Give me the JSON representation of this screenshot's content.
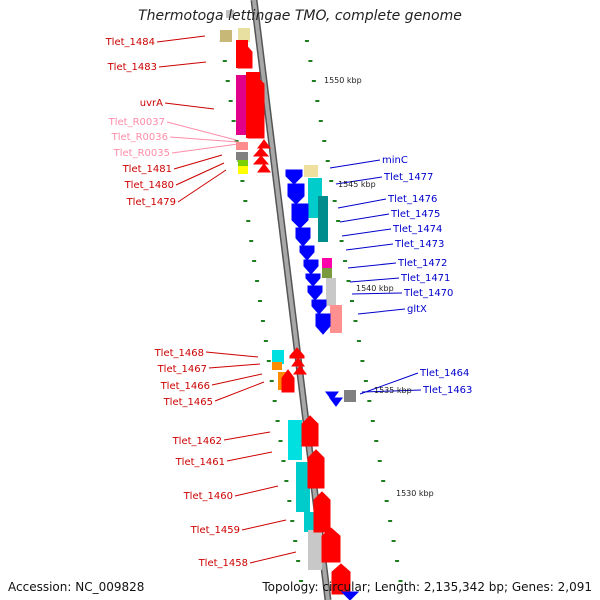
{
  "title": "Thermotoga lettingae TMO, complete genome",
  "footer": {
    "accession": "Accession: NC_009828",
    "topology": "Topology: circular; Length: 2,135,342 bp; Genes: 2,091"
  },
  "colors": {
    "backbone": "#808080",
    "forward_gene": "#ff0000",
    "reverse_gene": "#0000ff",
    "label_forward": "#cc0000",
    "label_reverse": "#0000cc",
    "label_rna": "#ff8caa",
    "tick": "#1e7d1e"
  },
  "scale_labels": [
    "1550 kbp",
    "1545 kbp",
    "1540 kbp",
    "1535 kbp",
    "1530 kbp"
  ],
  "left_labels": [
    {
      "text": "Tlet_1484",
      "kind": "forward"
    },
    {
      "text": "Tlet_1483",
      "kind": "forward"
    },
    {
      "text": "uvrA",
      "kind": "forward"
    },
    {
      "text": "Tlet_R0037",
      "kind": "rna"
    },
    {
      "text": "Tlet_R0036",
      "kind": "rna"
    },
    {
      "text": "Tlet_R0035",
      "kind": "rna"
    },
    {
      "text": "Tlet_1481",
      "kind": "forward"
    },
    {
      "text": "Tlet_1480",
      "kind": "forward"
    },
    {
      "text": "Tlet_1479",
      "kind": "forward"
    },
    {
      "text": "Tlet_1468",
      "kind": "forward"
    },
    {
      "text": "Tlet_1467",
      "kind": "forward"
    },
    {
      "text": "Tlet_1466",
      "kind": "forward"
    },
    {
      "text": "Tlet_1465",
      "kind": "forward"
    },
    {
      "text": "Tlet_1462",
      "kind": "forward"
    },
    {
      "text": "Tlet_1461",
      "kind": "forward"
    },
    {
      "text": "Tlet_1460",
      "kind": "forward"
    },
    {
      "text": "Tlet_1459",
      "kind": "forward"
    },
    {
      "text": "Tlet_1458",
      "kind": "forward"
    }
  ],
  "right_labels": [
    {
      "text": "minC",
      "kind": "reverse"
    },
    {
      "text": "Tlet_1477",
      "kind": "reverse"
    },
    {
      "text": "Tlet_1476",
      "kind": "reverse"
    },
    {
      "text": "Tlet_1475",
      "kind": "reverse"
    },
    {
      "text": "Tlet_1474",
      "kind": "reverse"
    },
    {
      "text": "Tlet_1473",
      "kind": "reverse"
    },
    {
      "text": "Tlet_1472",
      "kind": "reverse"
    },
    {
      "text": "Tlet_1471",
      "kind": "reverse"
    },
    {
      "text": "Tlet_1470",
      "kind": "reverse"
    },
    {
      "text": "gltX",
      "kind": "reverse"
    },
    {
      "text": "Tlet_1464",
      "kind": "reverse"
    },
    {
      "text": "Tlet_1463",
      "kind": "reverse"
    }
  ]
}
